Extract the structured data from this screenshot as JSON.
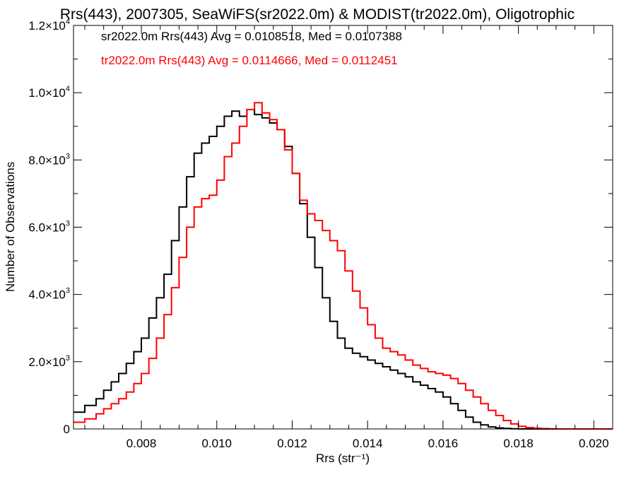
{
  "chart_data": {
    "type": "line",
    "step": true,
    "title": "Rrs(443), 2007305, SeaWiFS(sr2022.0m) & MODIST(tr2022.0m), Oligotrophic",
    "xlabel": "Rrs (str⁻¹)",
    "ylabel": "Number of Observations",
    "xlim": [
      0.0062,
      0.0205
    ],
    "ylim": [
      0,
      12000
    ],
    "grid": false,
    "x_ticks": [
      {
        "value": 0.008,
        "label": "0.008"
      },
      {
        "value": 0.01,
        "label": "0.010"
      },
      {
        "value": 0.012,
        "label": "0.012"
      },
      {
        "value": 0.014,
        "label": "0.014"
      },
      {
        "value": 0.016,
        "label": "0.016"
      },
      {
        "value": 0.018,
        "label": "0.018"
      },
      {
        "value": 0.02,
        "label": "0.020"
      }
    ],
    "y_ticks": [
      {
        "value": 0,
        "mantissa": "0",
        "exp": ""
      },
      {
        "value": 2000,
        "mantissa": "2.0×10",
        "exp": "3"
      },
      {
        "value": 4000,
        "mantissa": "4.0×10",
        "exp": "3"
      },
      {
        "value": 6000,
        "mantissa": "6.0×10",
        "exp": "3"
      },
      {
        "value": 8000,
        "mantissa": "8.0×10",
        "exp": "3"
      },
      {
        "value": 10000,
        "mantissa": "1.0×10",
        "exp": "4"
      },
      {
        "value": 12000,
        "mantissa": "1.2×10",
        "exp": "4"
      }
    ],
    "legend_position": "top-left",
    "series": [
      {
        "name": "sr2022.0m Rrs(443)",
        "label": "sr2022.0m Rrs(443) Avg = 0.0108518, Med = 0.0107388",
        "color": "#000000",
        "points": [
          [
            0.0062,
            500
          ],
          [
            0.0065,
            700
          ],
          [
            0.0068,
            900
          ],
          [
            0.007,
            1150
          ],
          [
            0.0072,
            1400
          ],
          [
            0.0074,
            1650
          ],
          [
            0.0076,
            1950
          ],
          [
            0.0078,
            2300
          ],
          [
            0.008,
            2700
          ],
          [
            0.0082,
            3300
          ],
          [
            0.0084,
            3900
          ],
          [
            0.0086,
            4600
          ],
          [
            0.0088,
            5600
          ],
          [
            0.009,
            6600
          ],
          [
            0.0092,
            7500
          ],
          [
            0.0094,
            8200
          ],
          [
            0.0096,
            8500
          ],
          [
            0.0098,
            8700
          ],
          [
            0.01,
            9000
          ],
          [
            0.0102,
            9300
          ],
          [
            0.0104,
            9450
          ],
          [
            0.0106,
            9300
          ],
          [
            0.0108,
            9500
          ],
          [
            0.011,
            9350
          ],
          [
            0.0112,
            9250
          ],
          [
            0.0114,
            9100
          ],
          [
            0.0116,
            8900
          ],
          [
            0.0118,
            8400
          ],
          [
            0.012,
            7600
          ],
          [
            0.0122,
            6700
          ],
          [
            0.0124,
            5700
          ],
          [
            0.0126,
            4800
          ],
          [
            0.0128,
            3900
          ],
          [
            0.013,
            3200
          ],
          [
            0.0132,
            2700
          ],
          [
            0.0134,
            2400
          ],
          [
            0.0136,
            2250
          ],
          [
            0.0138,
            2150
          ],
          [
            0.014,
            2050
          ],
          [
            0.0142,
            1950
          ],
          [
            0.0144,
            1850
          ],
          [
            0.0146,
            1750
          ],
          [
            0.0148,
            1650
          ],
          [
            0.015,
            1550
          ],
          [
            0.0152,
            1400
          ],
          [
            0.0154,
            1300
          ],
          [
            0.0156,
            1200
          ],
          [
            0.0158,
            1100
          ],
          [
            0.016,
            950
          ],
          [
            0.0162,
            750
          ],
          [
            0.0164,
            550
          ],
          [
            0.0166,
            350
          ],
          [
            0.0168,
            200
          ],
          [
            0.017,
            120
          ],
          [
            0.0172,
            60
          ],
          [
            0.0174,
            30
          ],
          [
            0.0176,
            15
          ],
          [
            0.0178,
            5
          ],
          [
            0.018,
            0
          ],
          [
            0.0205,
            0
          ]
        ]
      },
      {
        "name": "tr2022.0m Rrs(443)",
        "label": "tr2022.0m Rrs(443) Avg = 0.0114666, Med = 0.0112451",
        "color": "#ff0000",
        "points": [
          [
            0.0062,
            200
          ],
          [
            0.0065,
            300
          ],
          [
            0.0068,
            450
          ],
          [
            0.007,
            600
          ],
          [
            0.0072,
            750
          ],
          [
            0.0074,
            900
          ],
          [
            0.0076,
            1100
          ],
          [
            0.0078,
            1350
          ],
          [
            0.008,
            1650
          ],
          [
            0.0082,
            2100
          ],
          [
            0.0084,
            2700
          ],
          [
            0.0086,
            3400
          ],
          [
            0.0088,
            4200
          ],
          [
            0.009,
            5100
          ],
          [
            0.0092,
            6000
          ],
          [
            0.0094,
            6600
          ],
          [
            0.0096,
            6850
          ],
          [
            0.0098,
            6950
          ],
          [
            0.01,
            7400
          ],
          [
            0.0102,
            8100
          ],
          [
            0.0104,
            8500
          ],
          [
            0.0106,
            9000
          ],
          [
            0.0108,
            9500
          ],
          [
            0.011,
            9700
          ],
          [
            0.0112,
            9400
          ],
          [
            0.0114,
            9200
          ],
          [
            0.0116,
            8900
          ],
          [
            0.0118,
            8300
          ],
          [
            0.012,
            7600
          ],
          [
            0.0122,
            6800
          ],
          [
            0.0124,
            6400
          ],
          [
            0.0126,
            6200
          ],
          [
            0.0128,
            5900
          ],
          [
            0.013,
            5600
          ],
          [
            0.0132,
            5300
          ],
          [
            0.0134,
            4700
          ],
          [
            0.0136,
            4100
          ],
          [
            0.0138,
            3600
          ],
          [
            0.014,
            3100
          ],
          [
            0.0142,
            2700
          ],
          [
            0.0144,
            2400
          ],
          [
            0.0146,
            2300
          ],
          [
            0.0148,
            2200
          ],
          [
            0.015,
            2050
          ],
          [
            0.0152,
            1900
          ],
          [
            0.0154,
            1800
          ],
          [
            0.0156,
            1700
          ],
          [
            0.0158,
            1650
          ],
          [
            0.016,
            1600
          ],
          [
            0.0162,
            1500
          ],
          [
            0.0164,
            1350
          ],
          [
            0.0166,
            1150
          ],
          [
            0.0168,
            950
          ],
          [
            0.017,
            750
          ],
          [
            0.0172,
            550
          ],
          [
            0.0174,
            400
          ],
          [
            0.0176,
            250
          ],
          [
            0.0178,
            150
          ],
          [
            0.018,
            80
          ],
          [
            0.0182,
            40
          ],
          [
            0.0184,
            20
          ],
          [
            0.0186,
            10
          ],
          [
            0.0188,
            5
          ],
          [
            0.019,
            0
          ],
          [
            0.0205,
            0
          ]
        ]
      }
    ]
  }
}
